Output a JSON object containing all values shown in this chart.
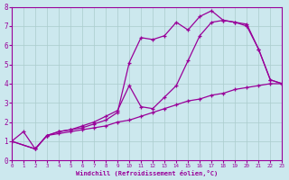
{
  "background_color": "#cce8ee",
  "grid_color": "#aacccc",
  "line_color": "#990099",
  "xlim": [
    0,
    23
  ],
  "ylim": [
    0,
    8
  ],
  "xticks": [
    0,
    1,
    2,
    3,
    4,
    5,
    6,
    7,
    8,
    9,
    10,
    11,
    12,
    13,
    14,
    15,
    16,
    17,
    18,
    19,
    20,
    21,
    22,
    23
  ],
  "yticks": [
    0,
    1,
    2,
    3,
    4,
    5,
    6,
    7,
    8
  ],
  "xlabel": "Windchill (Refroidissement éolien,°C)",
  "line1_x": [
    0,
    1,
    2,
    3,
    4,
    5,
    6,
    7,
    8,
    9,
    10,
    11,
    12,
    13,
    14,
    15,
    16,
    17,
    18,
    19,
    20,
    21,
    22,
    23
  ],
  "line1_y": [
    1.0,
    1.5,
    0.6,
    1.3,
    1.4,
    1.5,
    1.6,
    1.7,
    1.8,
    2.0,
    2.1,
    2.3,
    2.5,
    2.7,
    2.9,
    3.1,
    3.2,
    3.4,
    3.5,
    3.7,
    3.8,
    3.9,
    4.0,
    4.0
  ],
  "line2_x": [
    0,
    2,
    3,
    4,
    5,
    6,
    7,
    8,
    9,
    10,
    11,
    12,
    13,
    14,
    15,
    16,
    17,
    18,
    19,
    20,
    21,
    22,
    23
  ],
  "line2_y": [
    1.0,
    0.6,
    1.3,
    1.5,
    1.6,
    1.8,
    2.0,
    2.3,
    2.6,
    3.9,
    2.8,
    2.7,
    3.3,
    3.9,
    5.2,
    6.5,
    7.2,
    7.3,
    7.2,
    7.1,
    5.8,
    4.2,
    4.0
  ],
  "line3_x": [
    0,
    2,
    3,
    4,
    5,
    6,
    7,
    8,
    9,
    10,
    11,
    12,
    13,
    14,
    15,
    16,
    17,
    18,
    19,
    20,
    21,
    22,
    23
  ],
  "line3_y": [
    1.0,
    0.6,
    1.3,
    1.5,
    1.6,
    1.7,
    1.9,
    2.1,
    2.5,
    5.1,
    6.4,
    6.3,
    6.5,
    7.2,
    6.8,
    7.5,
    7.8,
    7.3,
    7.2,
    7.0,
    5.8,
    4.2,
    4.0
  ]
}
